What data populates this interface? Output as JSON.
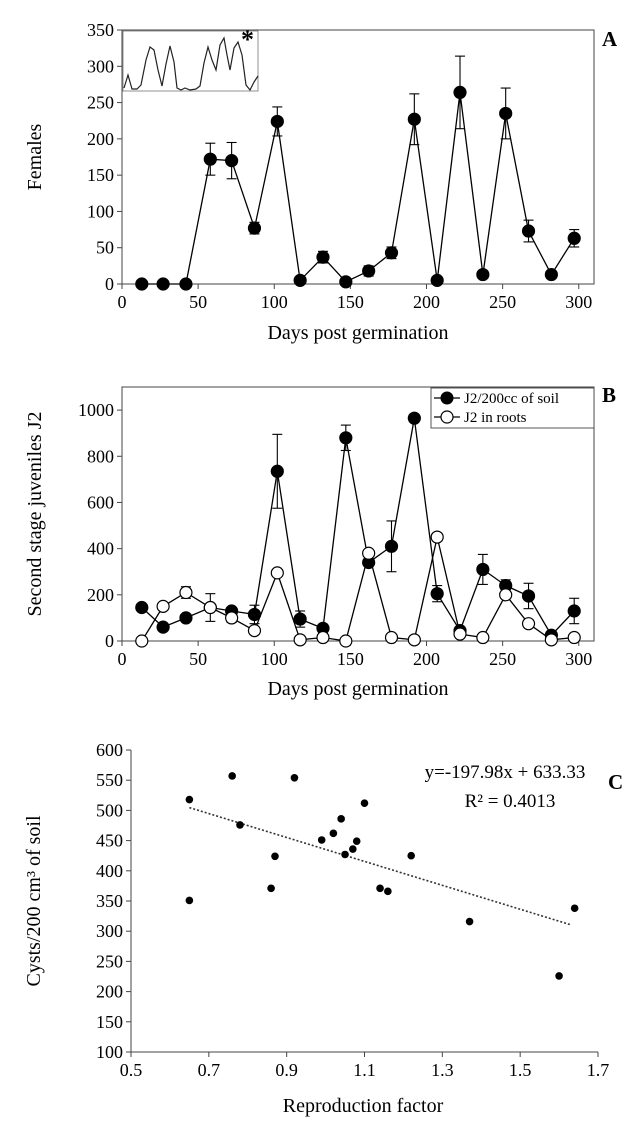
{
  "chart_data": [
    {
      "panel": "A",
      "type": "line",
      "xlabel": "Days post germination",
      "ylabel": "Females",
      "xlim": [
        0,
        310
      ],
      "ylim": [
        0,
        350
      ],
      "xticks": [
        0,
        50,
        100,
        150,
        200,
        250,
        300
      ],
      "yticks": [
        0,
        50,
        100,
        150,
        200,
        250,
        300,
        350
      ],
      "series": [
        {
          "name": "Females",
          "marker": "filled",
          "x": [
            13,
            27,
            42,
            58,
            72,
            87,
            102,
            117,
            132,
            147,
            162,
            177,
            192,
            207,
            222,
            237,
            252,
            267,
            282,
            297
          ],
          "y": [
            0,
            0,
            0,
            172,
            170,
            77,
            224,
            5,
            37,
            3,
            18,
            43,
            227,
            5,
            264,
            13,
            235,
            73,
            13,
            63
          ],
          "err": [
            0,
            0,
            0,
            22,
            25,
            8,
            20,
            0,
            8,
            0,
            7,
            8,
            35,
            0,
            50,
            0,
            35,
            15,
            0,
            12
          ]
        }
      ],
      "inset": {
        "annotation": "*",
        "description": "oscillation"
      }
    },
    {
      "panel": "B",
      "type": "line",
      "xlabel": "Days post germination",
      "ylabel": "Second stage juveniles J2",
      "xlim": [
        0,
        310
      ],
      "ylim": [
        0,
        1100
      ],
      "xticks": [
        0,
        50,
        100,
        150,
        200,
        250,
        300
      ],
      "yticks": [
        0,
        200,
        400,
        600,
        800,
        1000
      ],
      "legend": [
        "J2/200cc of soil",
        "J2 in roots"
      ],
      "series": [
        {
          "name": "J2/200cc of soil",
          "marker": "filled",
          "x": [
            13,
            27,
            42,
            58,
            72,
            87,
            102,
            117,
            132,
            147,
            162,
            177,
            192,
            207,
            222,
            237,
            252,
            267,
            282,
            297
          ],
          "y": [
            145,
            60,
            100,
            145,
            130,
            115,
            735,
            95,
            55,
            880,
            340,
            410,
            965,
            205,
            45,
            310,
            240,
            195,
            25,
            130
          ],
          "err": [
            0,
            0,
            15,
            0,
            0,
            40,
            160,
            35,
            0,
            55,
            0,
            110,
            0,
            35,
            0,
            65,
            25,
            55,
            0,
            55
          ]
        },
        {
          "name": "J2 in roots",
          "marker": "open",
          "x": [
            13,
            27,
            42,
            58,
            72,
            87,
            102,
            117,
            132,
            147,
            162,
            177,
            192,
            207,
            222,
            237,
            252,
            267,
            282,
            297
          ],
          "y": [
            0,
            150,
            210,
            145,
            100,
            45,
            295,
            5,
            15,
            0,
            380,
            15,
            5,
            450,
            30,
            15,
            200,
            75,
            5,
            15
          ],
          "err": [
            0,
            0,
            25,
            60,
            20,
            0,
            0,
            0,
            0,
            0,
            0,
            0,
            0,
            0,
            0,
            0,
            0,
            0,
            0,
            0
          ]
        }
      ]
    },
    {
      "panel": "C",
      "type": "scatter",
      "xlabel": "Reproduction factor",
      "ylabel": "Cysts/200 cm³ of soil",
      "xlim": [
        0.5,
        1.7
      ],
      "ylim": [
        100,
        600
      ],
      "xticks": [
        "0.5",
        "0.7",
        "0.9",
        "1.1",
        "1.3",
        "1.5",
        "1.7"
      ],
      "yticks": [
        100,
        150,
        200,
        250,
        300,
        350,
        400,
        450,
        500,
        550,
        600
      ],
      "equation": "y=-197.98x + 633.33",
      "r_squared": "R² = 0.4013",
      "trendline": {
        "slope": -197.98,
        "intercept": 633.33,
        "x_from": 0.65,
        "x_to": 1.63
      },
      "points": [
        [
          0.65,
          518
        ],
        [
          0.65,
          351
        ],
        [
          0.76,
          557
        ],
        [
          0.78,
          476
        ],
        [
          0.86,
          371
        ],
        [
          0.87,
          424
        ],
        [
          0.92,
          554
        ],
        [
          0.99,
          451
        ],
        [
          1.02,
          462
        ],
        [
          1.04,
          486
        ],
        [
          1.05,
          427
        ],
        [
          1.07,
          436
        ],
        [
          1.08,
          449
        ],
        [
          1.1,
          512
        ],
        [
          1.14,
          371
        ],
        [
          1.16,
          366
        ],
        [
          1.22,
          425
        ],
        [
          1.37,
          316
        ],
        [
          1.6,
          226
        ],
        [
          1.64,
          338
        ]
      ]
    }
  ]
}
